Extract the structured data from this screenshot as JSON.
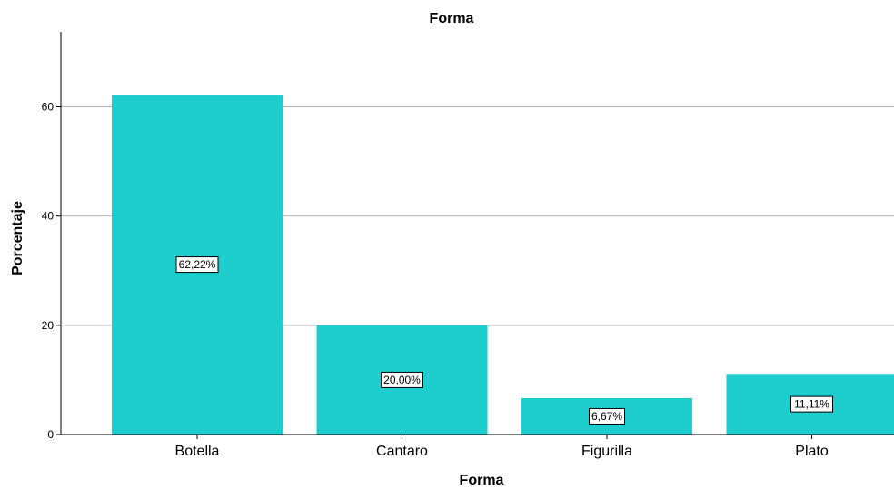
{
  "chart_data": {
    "type": "bar",
    "title": "Forma",
    "xlabel": "Forma",
    "ylabel": "Porcentaje",
    "categories": [
      "Botella",
      "Cantaro",
      "Figurilla",
      "Plato"
    ],
    "values": [
      62.22,
      20.0,
      6.67,
      11.11
    ],
    "data_labels": [
      "62,22%",
      "20,00%",
      "6,67%",
      "11,11%"
    ],
    "yticks": [
      0,
      20,
      40,
      60
    ],
    "ylim": [
      0,
      74
    ],
    "grid": true,
    "bar_color": "#1ecdcd"
  }
}
